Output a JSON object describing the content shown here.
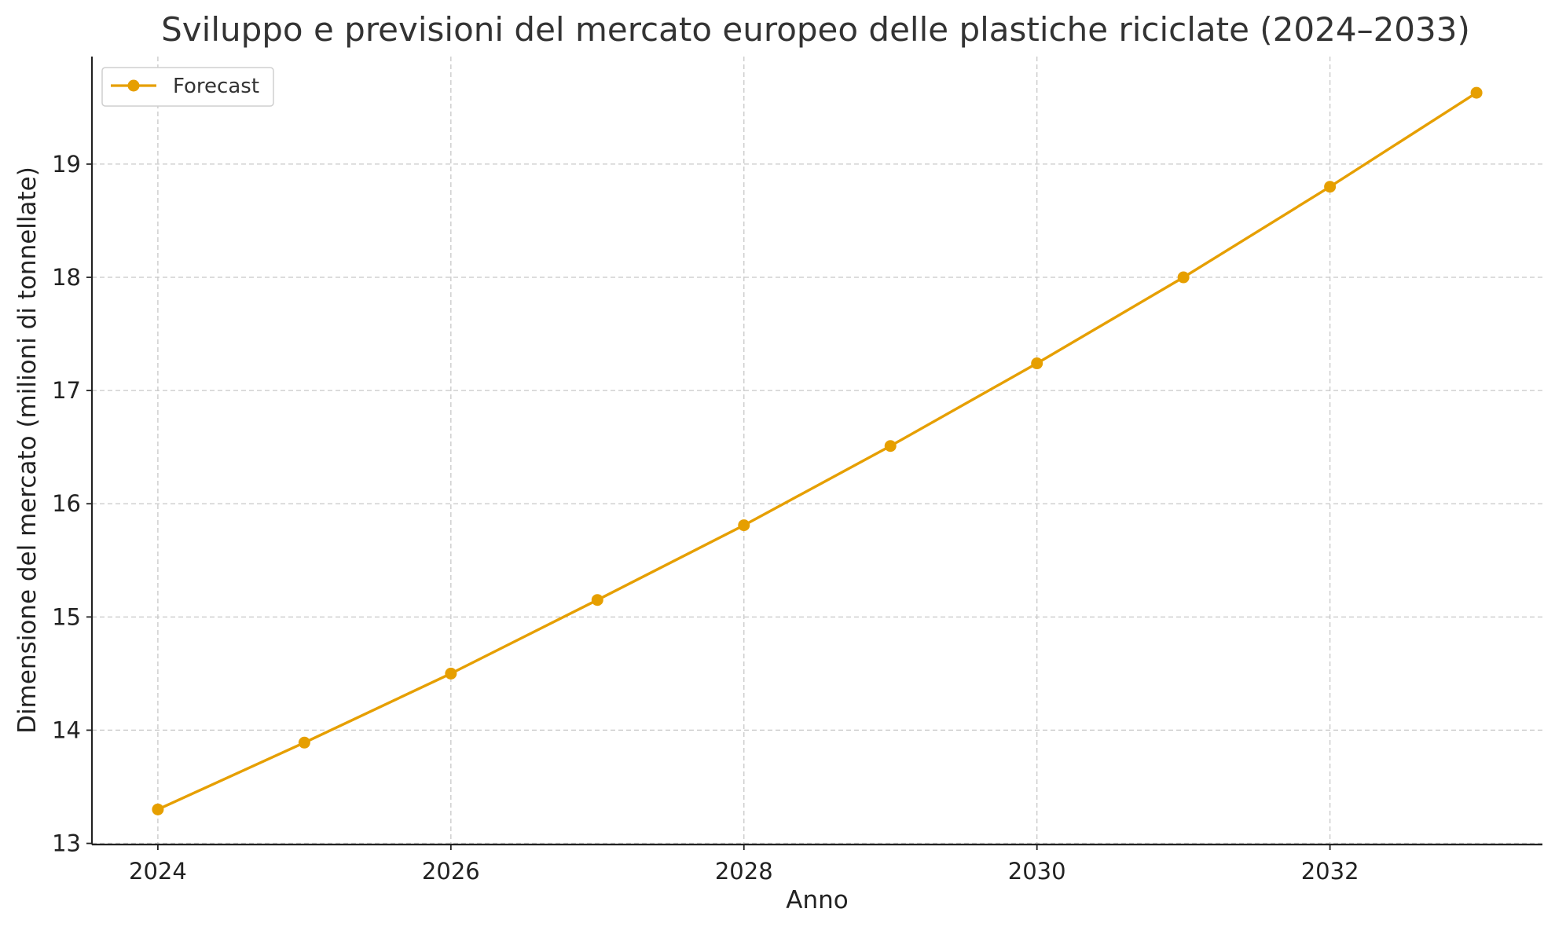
{
  "chart_data": {
    "type": "line",
    "title": "Sviluppo e previsioni del mercato europeo delle plastiche riciclate (2024–2033)",
    "xlabel": "Anno",
    "ylabel": "Dimensione del mercato (milioni di tonnellate)",
    "x": [
      2024,
      2025,
      2026,
      2027,
      2028,
      2029,
      2030,
      2031,
      2032,
      2033
    ],
    "series": [
      {
        "name": "Forecast",
        "color": "#E69F00",
        "marker": "circle",
        "values": [
          13.3,
          13.89,
          14.5,
          15.15,
          15.81,
          16.51,
          17.24,
          18.0,
          18.8,
          19.63
        ]
      }
    ],
    "xlim": [
      2023.55,
      2033.45
    ],
    "ylim": [
      12.99,
      19.95
    ],
    "x_ticks": [
      2024,
      2026,
      2028,
      2030,
      2032
    ],
    "x_tick_labels": [
      "2024",
      "2026",
      "2028",
      "2030",
      "2032"
    ],
    "y_ticks": [
      13,
      14,
      15,
      16,
      17,
      18,
      19
    ],
    "y_tick_labels": [
      "13",
      "14",
      "15",
      "16",
      "17",
      "18",
      "19"
    ],
    "grid": true,
    "legend_position": "top-left"
  }
}
